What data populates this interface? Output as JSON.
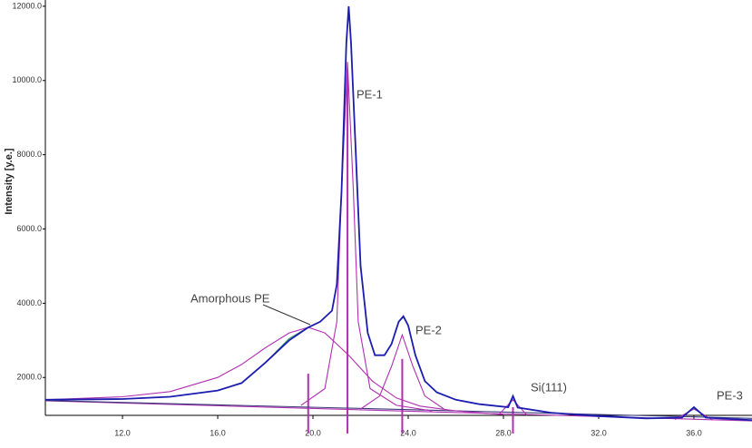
{
  "chart_data": {
    "type": "line",
    "y_label": "Intensity [y.e.]",
    "xlim": [
      8.76,
      38.44
    ],
    "ylim": [
      980,
      12120
    ],
    "xticks": [
      {
        "value": 12,
        "label": "12.0"
      },
      {
        "value": 16,
        "label": "16.0"
      },
      {
        "value": 20,
        "label": "20.0"
      },
      {
        "value": 24,
        "label": "24.0"
      },
      {
        "value": 28,
        "label": "28.0"
      },
      {
        "value": 32,
        "label": "32.0"
      },
      {
        "value": 36,
        "label": "36.0"
      }
    ],
    "yticks": [
      {
        "value": 2000,
        "label": "2000.0"
      },
      {
        "value": 4000,
        "label": "4000.0"
      },
      {
        "value": 6000,
        "label": "6000.0"
      },
      {
        "value": 8000,
        "label": "8000.0"
      },
      {
        "value": 10000,
        "label": "10000.0"
      },
      {
        "value": 12000,
        "label": "12000.0"
      }
    ],
    "series": [
      {
        "color": "#b030b0",
        "x": [
          8.76,
          38.44
        ],
        "values": [
          1370,
          830
        ]
      },
      {
        "color": "#3a3a7a",
        "x": [
          8.76,
          38.44
        ],
        "values": [
          1380,
          900
        ]
      },
      {
        "color": "#b030b0",
        "x": [
          8.76,
          12,
          14,
          16,
          17,
          18,
          19,
          19.8,
          20.5,
          21.5,
          22.5,
          23.5,
          24.5,
          26,
          28
        ],
        "values": [
          1400,
          1480,
          1620,
          2000,
          2350,
          2800,
          3200,
          3350,
          3200,
          2600,
          1900,
          1450,
          1230,
          1100,
          1000
        ]
      },
      {
        "color": "#b030b0",
        "x": [
          19.5,
          20.5,
          21,
          21.2,
          21.45,
          21.7,
          21.9,
          22.4,
          23.5,
          25
        ],
        "values": [
          1250,
          1700,
          3500,
          7000,
          10500,
          7000,
          3500,
          1700,
          1250,
          1100
        ]
      },
      {
        "color": "#b030b0",
        "x": [
          22,
          22.8,
          23.3,
          23.75,
          24.2,
          24.7,
          25.5
        ],
        "values": [
          1150,
          1500,
          2300,
          3150,
          2300,
          1500,
          1150
        ]
      },
      {
        "color": "#b030b0",
        "x": [
          27.8,
          28.4,
          29
        ],
        "values": [
          1000,
          1400,
          980
        ]
      },
      {
        "color": "#b030b0",
        "x": [
          35.2,
          36,
          36.8
        ],
        "values": [
          870,
          1150,
          850
        ]
      },
      {
        "color": "#2a9a6a",
        "x": [
          8.76,
          12,
          14,
          16,
          17,
          18,
          19,
          19.8,
          20.3,
          20.8,
          21,
          21.2,
          21.4,
          21.5,
          21.6,
          21.8,
          22,
          22.3,
          22.6,
          23,
          23.3,
          23.6,
          23.8,
          24,
          24.3,
          24.7,
          25.2,
          26,
          27,
          28.2,
          28.4,
          28.6,
          30,
          32,
          34,
          35.5,
          36,
          36.5,
          38.44
        ],
        "values": [
          1390,
          1420,
          1480,
          1650,
          1850,
          2400,
          3050,
          3350,
          3500,
          3800,
          4500,
          7000,
          11000,
          11900,
          11000,
          8000,
          5000,
          3200,
          2600,
          2600,
          2900,
          3500,
          3620,
          3400,
          2600,
          1900,
          1600,
          1400,
          1280,
          1200,
          1480,
          1190,
          1050,
          960,
          900,
          920,
          1180,
          920,
          850
        ]
      },
      {
        "color": "#1c1cb0",
        "x": [
          8.76,
          12,
          14,
          16,
          17,
          18,
          19,
          19.8,
          20.3,
          20.8,
          21,
          21.2,
          21.4,
          21.5,
          21.6,
          21.8,
          22,
          22.3,
          22.6,
          23,
          23.3,
          23.6,
          23.8,
          24,
          24.3,
          24.7,
          25.2,
          26,
          27,
          28.2,
          28.4,
          28.6,
          30,
          32,
          34,
          35.5,
          36,
          36.5,
          38.44
        ],
        "values": [
          1400,
          1420,
          1480,
          1650,
          1850,
          2400,
          3000,
          3350,
          3500,
          3800,
          4500,
          7000,
          11000,
          12000,
          11000,
          8000,
          5000,
          3200,
          2600,
          2600,
          2900,
          3500,
          3650,
          3400,
          2600,
          1900,
          1600,
          1400,
          1280,
          1200,
          1500,
          1190,
          1050,
          960,
          900,
          920,
          1200,
          920,
          850
        ]
      }
    ],
    "sticks": {
      "color": "#b030b0",
      "x": [
        19.8,
        21.45,
        23.75,
        28.4
      ],
      "values": [
        2100,
        10300,
        2500,
        1200
      ]
    },
    "annotations": [
      {
        "text": "Amorphous PE"
      },
      {
        "text": "PE-1"
      },
      {
        "text": "PE-2"
      },
      {
        "text": "Si(111)"
      },
      {
        "text": "PE-3"
      }
    ]
  }
}
